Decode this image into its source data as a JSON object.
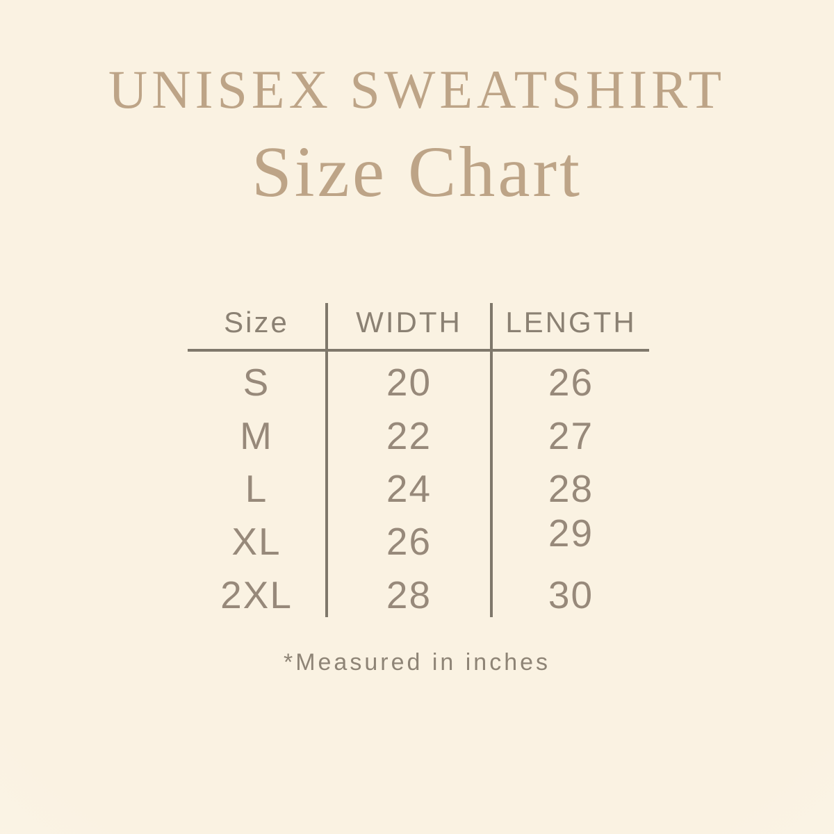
{
  "header": {
    "title": "UNISEX SWEATSHIRT",
    "subtitle": "Size Chart"
  },
  "colors": {
    "background": "#faf2e2",
    "accent_tan": "#bda487",
    "table_text": "#97897a",
    "header_text": "#8b8173",
    "rule_line": "#7f786b"
  },
  "chart_data": {
    "type": "table",
    "title": "UNISEX SWEATSHIRT Size Chart",
    "columns": [
      "Size",
      "WIDTH",
      "LENGTH"
    ],
    "rows": [
      [
        "S",
        20,
        26
      ],
      [
        "M",
        22,
        27
      ],
      [
        "L",
        24,
        28
      ],
      [
        "XL",
        26,
        29
      ],
      [
        "2XL",
        28,
        30
      ]
    ],
    "units": "inches",
    "footnote": "*Measured in inches"
  }
}
